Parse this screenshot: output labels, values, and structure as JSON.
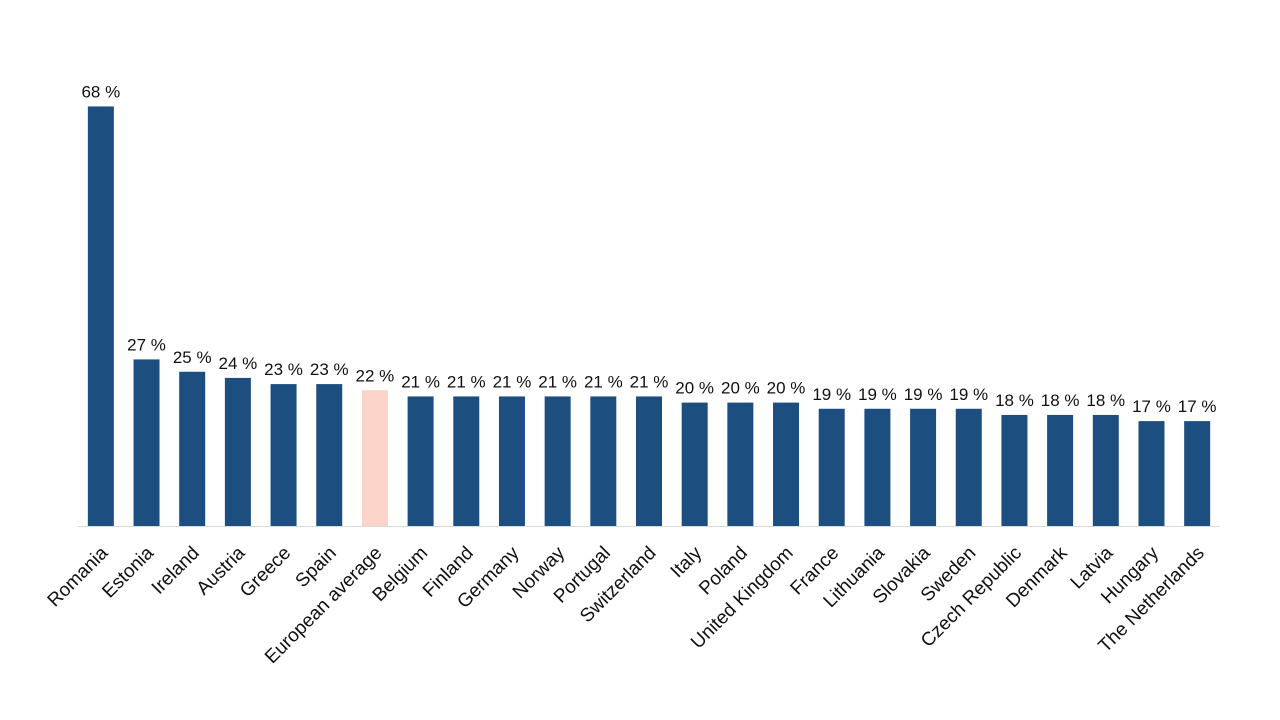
{
  "chart_data": {
    "type": "bar",
    "categories": [
      "Romania",
      "Estonia",
      "Ireland",
      "Austria",
      "Greece",
      "Spain",
      "European average",
      "Belgium",
      "Finland",
      "Germany",
      "Norway",
      "Portugal",
      "Switzerland",
      "Italy",
      "Poland",
      "United Kingdom",
      "France",
      "Lithuania",
      "Slovakia",
      "Sweden",
      "Czech Republic",
      "Denmark",
      "Latvia",
      "Hungary",
      "The Netherlands"
    ],
    "values": [
      68,
      27,
      25,
      24,
      23,
      23,
      22,
      21,
      21,
      21,
      21,
      21,
      21,
      20,
      20,
      20,
      19,
      19,
      19,
      19,
      18,
      18,
      18,
      17,
      17
    ],
    "value_labels": [
      "68 %",
      "27 %",
      "25 %",
      "24 %",
      "23 %",
      "23 %",
      "22 %",
      "21 %",
      "21 %",
      "21 %",
      "21 %",
      "21 %",
      "21 %",
      "20 %",
      "20 %",
      "20 %",
      "19 %",
      "19 %",
      "19 %",
      "19 %",
      "18 %",
      "18 %",
      "18 %",
      "17 %",
      "17 %"
    ],
    "highlight_category": "European average",
    "colors": {
      "bar": "#1c4e80",
      "highlight": "#fcd3c9",
      "axis": "#d9d9d9"
    },
    "ylim": [
      0,
      70
    ],
    "grid": false,
    "legend": "none",
    "title": "",
    "xlabel": "",
    "ylabel": ""
  }
}
